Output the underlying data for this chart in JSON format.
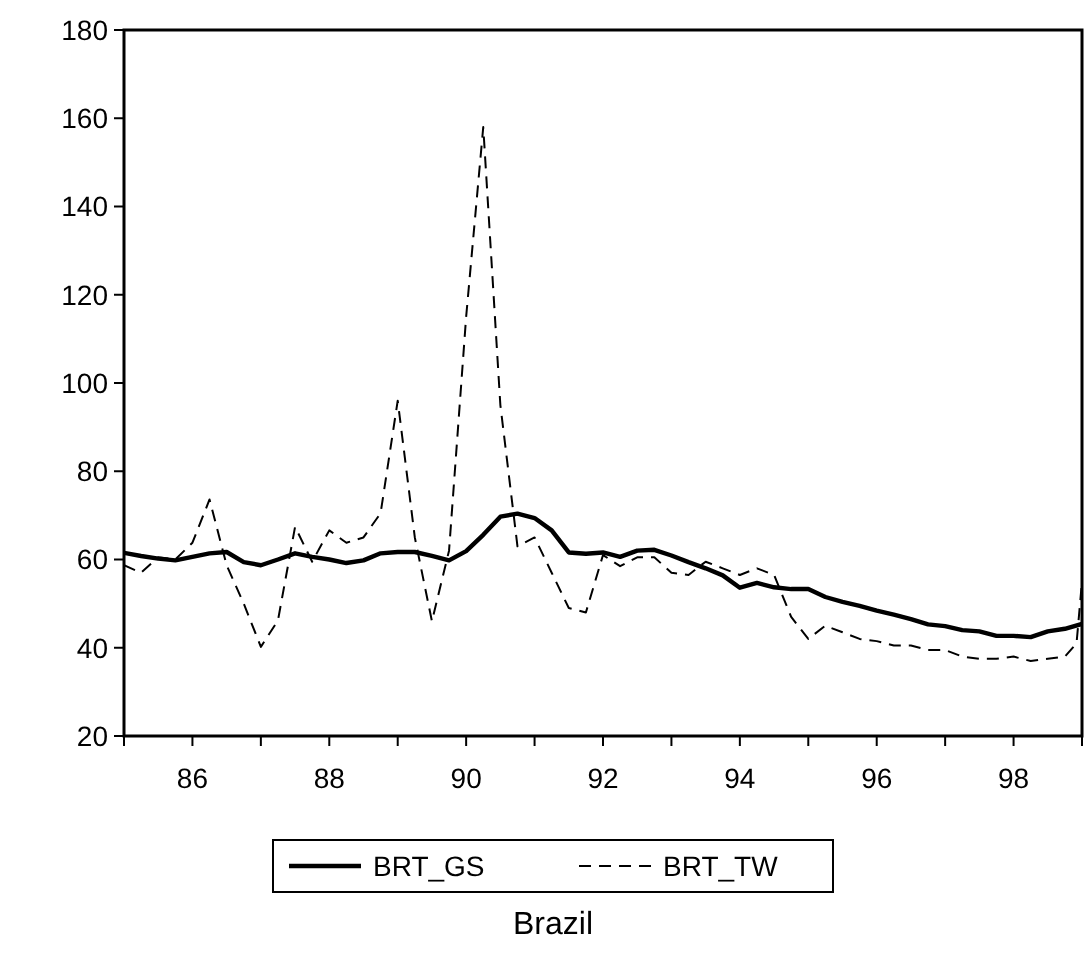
{
  "chart_data": {
    "type": "line",
    "title": "Brazil",
    "xlim": [
      85,
      99
    ],
    "ylim": [
      20,
      180
    ],
    "xticks": [
      {
        "value": 85,
        "label": null
      },
      {
        "value": 86,
        "label": "86"
      },
      {
        "value": 87,
        "label": null
      },
      {
        "value": 88,
        "label": "88"
      },
      {
        "value": 89,
        "label": null
      },
      {
        "value": 90,
        "label": "90"
      },
      {
        "value": 91,
        "label": null
      },
      {
        "value": 92,
        "label": "92"
      },
      {
        "value": 93,
        "label": null
      },
      {
        "value": 94,
        "label": "94"
      },
      {
        "value": 95,
        "label": null
      },
      {
        "value": 96,
        "label": "96"
      },
      {
        "value": 97,
        "label": null
      },
      {
        "value": 98,
        "label": "98"
      },
      {
        "value": 99,
        "label": null
      }
    ],
    "yticks": [
      20,
      40,
      60,
      80,
      100,
      120,
      140,
      160,
      180
    ],
    "grid": false,
    "legend": "bottom",
    "series": [
      {
        "name": "BRT_GS",
        "color": "#000000",
        "line_style": "solid",
        "x": [
          85,
          85.25,
          85.5,
          85.75,
          86,
          86.25,
          86.5,
          86.75,
          87,
          87.25,
          87.5,
          87.75,
          88,
          88.25,
          88.5,
          88.75,
          89,
          89.25,
          89.5,
          89.75,
          90,
          90.25,
          90.5,
          90.75,
          91,
          91.25,
          91.5,
          91.75,
          92,
          92.25,
          92.5,
          92.75,
          93,
          93.25,
          93.5,
          93.75,
          94,
          94.25,
          94.5,
          94.75,
          95,
          95.25,
          95.5,
          95.75,
          96,
          96.25,
          96.5,
          96.75,
          97,
          97.25,
          97.5,
          97.75,
          98,
          98.25,
          98.5,
          98.75,
          99
        ],
        "values": [
          61.5,
          60.8,
          60.2,
          59.8,
          60.6,
          61.4,
          61.7,
          59.4,
          58.7,
          60,
          61.4,
          60.6,
          60,
          59.2,
          59.8,
          61.4,
          61.7,
          61.7,
          60.8,
          59.8,
          61.9,
          65.6,
          69.7,
          70.4,
          69.4,
          66.6,
          61.6,
          61.3,
          61.6,
          60.6,
          62,
          62.2,
          60.9,
          59.4,
          58,
          56.4,
          53.6,
          54.7,
          53.7,
          53.3,
          53.3,
          51.5,
          50.4,
          49.5,
          48.4,
          47.5,
          46.5,
          45.3,
          44.9,
          44,
          43.7,
          42.7,
          42.7,
          42.4,
          43.7,
          44.3,
          45.4
        ]
      },
      {
        "name": "BRT_TW",
        "color": "#000000",
        "line_style": "dashed",
        "x": [
          85,
          85.25,
          85.5,
          85.75,
          86,
          86.25,
          86.5,
          86.75,
          87,
          87.25,
          87.5,
          87.75,
          88,
          88.25,
          88.5,
          88.75,
          89,
          89.25,
          89.5,
          89.75,
          90,
          90.25,
          90.5,
          90.75,
          91,
          91.25,
          91.5,
          91.75,
          92,
          92.25,
          92.5,
          92.75,
          93,
          93.25,
          93.5,
          93.75,
          94,
          94.25,
          94.5,
          94.75,
          95,
          95.25,
          95.5,
          95.75,
          96,
          96.25,
          96.5,
          96.75,
          97,
          97.25,
          97.5,
          97.75,
          98,
          98.25,
          98.5,
          98.75,
          98.92,
          99
        ],
        "values": [
          58.7,
          57,
          60.5,
          60,
          63.8,
          73.6,
          58.7,
          50,
          40.2,
          46.2,
          67.4,
          59.5,
          66.6,
          63.8,
          65,
          70.5,
          96,
          65,
          46,
          62,
          115,
          158,
          95,
          63,
          65,
          57,
          49,
          48,
          61,
          58.5,
          60.5,
          60.5,
          57,
          56.5,
          59.5,
          58,
          56.5,
          58,
          56.5,
          47,
          42,
          45,
          43.5,
          42,
          41.5,
          40.5,
          40.5,
          39.5,
          39.5,
          38,
          37.5,
          37.5,
          38,
          37,
          37.5,
          38,
          41,
          55
        ]
      }
    ]
  }
}
